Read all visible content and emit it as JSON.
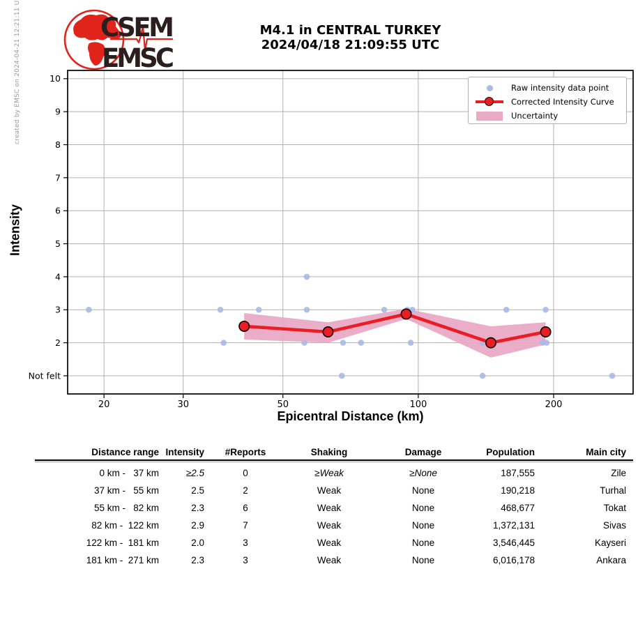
{
  "created_by": "created by EMSC on 2024-04-21 12:21:11 UTC",
  "logo": {
    "csem": "CSEM",
    "emsc": "EMSC"
  },
  "title": {
    "line1": "M4.1 in CENTRAL TURKEY",
    "line2": "2024/04/18 21:09:55 UTC"
  },
  "chart_data": {
    "type": "line",
    "title": "M4.1 in CENTRAL TURKEY 2024/04/18 21:09:55 UTC",
    "xlabel": "Epicentral Distance (km)",
    "ylabel": "Intensity",
    "x_scale": "log",
    "x_range": [
      16.6,
      300.5
    ],
    "y_range": [
      0.45,
      10.25
    ],
    "grid": true,
    "legend_position": "upper right",
    "x_ticks": [
      {
        "value": 20,
        "label": "20"
      },
      {
        "value": 30,
        "label": "30"
      },
      {
        "value": 50,
        "label": "50"
      },
      {
        "value": 100,
        "label": "100"
      },
      {
        "value": 200,
        "label": "200"
      }
    ],
    "y_ticks": [
      {
        "value": 1,
        "label": "Not felt"
      },
      {
        "value": 2,
        "label": "2"
      },
      {
        "value": 3,
        "label": "3"
      },
      {
        "value": 4,
        "label": "4"
      },
      {
        "value": 5,
        "label": "5"
      },
      {
        "value": 6,
        "label": "6"
      },
      {
        "value": 7,
        "label": "7"
      },
      {
        "value": 8,
        "label": "8"
      },
      {
        "value": 9,
        "label": "9"
      },
      {
        "value": 10,
        "label": "10"
      }
    ],
    "legend": [
      "Raw intensity data point",
      "Corrected Intensity Curve",
      "Uncertainty"
    ],
    "raw_points": [
      {
        "km": 18.5,
        "intensity": 3
      },
      {
        "km": 36.3,
        "intensity": 3
      },
      {
        "km": 44.2,
        "intensity": 3
      },
      {
        "km": 56.5,
        "intensity": 4
      },
      {
        "km": 56.5,
        "intensity": 3
      },
      {
        "km": 84,
        "intensity": 3
      },
      {
        "km": 94.5,
        "intensity": 3
      },
      {
        "km": 97,
        "intensity": 3
      },
      {
        "km": 157,
        "intensity": 3
      },
      {
        "km": 192,
        "intensity": 3
      },
      {
        "km": 36.9,
        "intensity": 2
      },
      {
        "km": 55.8,
        "intensity": 2
      },
      {
        "km": 68,
        "intensity": 2
      },
      {
        "km": 74.6,
        "intensity": 2
      },
      {
        "km": 96.2,
        "intensity": 2
      },
      {
        "km": 139,
        "intensity": 2
      },
      {
        "km": 189,
        "intensity": 2
      },
      {
        "km": 193,
        "intensity": 2
      },
      {
        "km": 67.6,
        "intensity": 1
      },
      {
        "km": 139,
        "intensity": 1
      },
      {
        "km": 270,
        "intensity": 1
      }
    ],
    "corrected_curve": [
      {
        "km": 41,
        "intensity": 2.5
      },
      {
        "km": 63,
        "intensity": 2.33
      },
      {
        "km": 94,
        "intensity": 2.87
      },
      {
        "km": 145,
        "intensity": 2.0
      },
      {
        "km": 192,
        "intensity": 2.33
      }
    ],
    "uncertainty_band": [
      {
        "km": 41,
        "lower": 2.1,
        "upper": 2.9
      },
      {
        "km": 63,
        "lower": 2.0,
        "upper": 2.62
      },
      {
        "km": 94,
        "lower": 2.72,
        "upper": 3.03
      },
      {
        "km": 145,
        "lower": 1.55,
        "upper": 2.5
      },
      {
        "km": 192,
        "lower": 1.95,
        "upper": 2.62
      }
    ],
    "colors": {
      "raw_point": "#aab9e6",
      "curve": "#ea1c24",
      "band": "#e9aac5",
      "grid": "#b0b0b0",
      "logo_red": "#e0241c",
      "logo_text": "#2b1e1e"
    }
  },
  "table": {
    "headers": [
      "Distance range",
      "Intensity",
      "#Reports",
      "Shaking",
      "Damage",
      "Population",
      "Main city"
    ],
    "rows": [
      {
        "cells": [
          "0 km -   37 km",
          "≥2.5",
          "0",
          "≥Weak",
          "≥None",
          "187,555",
          "Zile"
        ],
        "italic": [
          false,
          true,
          false,
          true,
          true,
          false,
          false
        ]
      },
      {
        "cells": [
          "37 km -   55 km",
          "2.5",
          "2",
          "Weak",
          "None",
          "190,218",
          "Turhal"
        ],
        "italic": [
          false,
          false,
          false,
          false,
          false,
          false,
          false
        ]
      },
      {
        "cells": [
          "55 km -   82 km",
          "2.3",
          "6",
          "Weak",
          "None",
          "468,677",
          "Tokat"
        ],
        "italic": [
          false,
          false,
          false,
          false,
          false,
          false,
          false
        ]
      },
      {
        "cells": [
          "82 km -  122 km",
          "2.9",
          "7",
          "Weak",
          "None",
          "1,372,131",
          "Sivas"
        ],
        "italic": [
          false,
          false,
          false,
          false,
          false,
          false,
          false
        ]
      },
      {
        "cells": [
          "122 km -  181 km",
          "2.0",
          "3",
          "Weak",
          "None",
          "3,546,445",
          "Kayseri"
        ],
        "italic": [
          false,
          false,
          false,
          false,
          false,
          false,
          false
        ]
      },
      {
        "cells": [
          "181 km -  271 km",
          "2.3",
          "3",
          "Weak",
          "None",
          "6,016,178",
          "Ankara"
        ],
        "italic": [
          false,
          false,
          false,
          false,
          false,
          false,
          false
        ]
      }
    ]
  }
}
